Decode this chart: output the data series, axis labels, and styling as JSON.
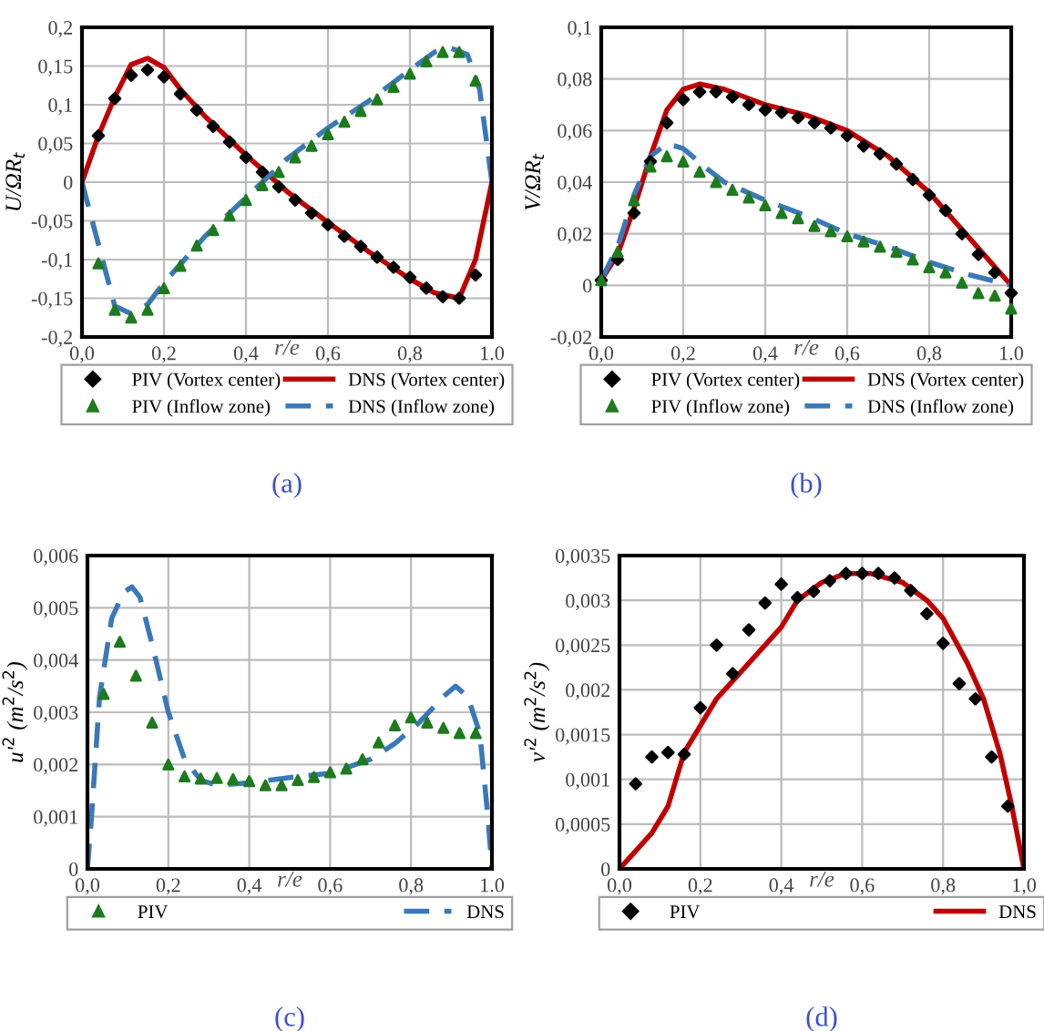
{
  "chart_data": [
    {
      "type": "line",
      "xlabel": "r/e",
      "ylabel": "U/ΩR$_{t}$",
      "annotations": [
        "(a)"
      ],
      "grid": true,
      "legend": "bottom",
      "xlim": [
        0,
        1
      ],
      "xticks": [
        {
          "value": 0,
          "label": "0,0"
        },
        {
          "value": 0.2,
          "label": "0,2"
        },
        {
          "value": 0.4,
          "label": "0,4"
        },
        {
          "value": 0.6,
          "label": "0,6"
        },
        {
          "value": 0.8,
          "label": "0,8"
        },
        {
          "value": 1,
          "label": "1.0"
        }
      ],
      "ylim": [
        -0.2,
        0.2
      ],
      "yticks": [
        {
          "value": -0.2,
          "label": "-0,2"
        },
        {
          "value": -0.15,
          "label": "-0,15"
        },
        {
          "value": -0.1,
          "label": "-0,1"
        },
        {
          "value": -0.05,
          "label": "-0,05"
        },
        0,
        {
          "value": 0.05,
          "label": "0,05"
        },
        {
          "value": 0.1,
          "label": "0,1"
        },
        {
          "value": 0.15,
          "label": "0,15"
        },
        {
          "value": 0.2,
          "label": "0,2"
        }
      ],
      "series": [
        {
          "name": "PIV (Vortex center)",
          "type": "scatter",
          "marker": "diamond",
          "color": "#000000",
          "x": [
            0.04,
            0.08,
            0.12,
            0.16,
            0.2,
            0.24,
            0.28,
            0.32,
            0.36,
            0.4,
            0.44,
            0.48,
            0.52,
            0.56,
            0.6,
            0.64,
            0.68,
            0.72,
            0.76,
            0.8,
            0.84,
            0.88,
            0.92,
            0.96
          ],
          "values": [
            0.06,
            0.108,
            0.138,
            0.145,
            0.136,
            0.114,
            0.093,
            0.072,
            0.052,
            0.032,
            0.013,
            -0.006,
            -0.023,
            -0.04,
            -0.055,
            -0.07,
            -0.083,
            -0.097,
            -0.11,
            -0.123,
            -0.137,
            -0.148,
            -0.15,
            -0.12
          ]
        },
        {
          "name": "DNS (Vortex center)",
          "type": "line",
          "line_style": "solid",
          "color": "#c00000",
          "x": [
            0,
            0.04,
            0.08,
            0.12,
            0.16,
            0.2,
            0.24,
            0.3,
            0.4,
            0.5,
            0.6,
            0.7,
            0.8,
            0.86,
            0.92,
            0.96,
            1.0
          ],
          "values": [
            0,
            0.06,
            0.11,
            0.152,
            0.16,
            0.148,
            0.12,
            0.085,
            0.035,
            -0.012,
            -0.052,
            -0.09,
            -0.125,
            -0.143,
            -0.15,
            -0.1,
            0
          ]
        },
        {
          "name": "PIV (Inflow zone)",
          "type": "scatter",
          "marker": "triangle",
          "color": "#1e7a1e",
          "x": [
            0.04,
            0.08,
            0.12,
            0.16,
            0.2,
            0.24,
            0.28,
            0.32,
            0.36,
            0.4,
            0.44,
            0.48,
            0.52,
            0.56,
            0.6,
            0.64,
            0.68,
            0.72,
            0.76,
            0.8,
            0.84,
            0.88,
            0.92,
            0.96
          ],
          "values": [
            -0.105,
            -0.165,
            -0.175,
            -0.165,
            -0.137,
            -0.108,
            -0.082,
            -0.062,
            -0.043,
            -0.023,
            -0.004,
            0.013,
            0.032,
            0.047,
            0.062,
            0.078,
            0.092,
            0.107,
            0.123,
            0.14,
            0.156,
            0.168,
            0.168,
            0.131
          ]
        },
        {
          "name": "DNS (Inflow zone)",
          "type": "line",
          "line_style": "dashed",
          "color": "#3a78b8",
          "x": [
            0,
            0.04,
            0.08,
            0.12,
            0.16,
            0.2,
            0.3,
            0.4,
            0.5,
            0.6,
            0.7,
            0.8,
            0.86,
            0.9,
            0.94,
            0.97,
            1.0
          ],
          "values": [
            0,
            -0.08,
            -0.16,
            -0.17,
            -0.158,
            -0.13,
            -0.07,
            -0.02,
            0.03,
            0.07,
            0.105,
            0.145,
            0.168,
            0.173,
            0.165,
            0.12,
            0
          ]
        }
      ]
    },
    {
      "type": "line",
      "xlabel": "r/e",
      "ylabel": "V/ΩR$_{t}$",
      "annotations": [
        "(b)"
      ],
      "grid": true,
      "legend": "bottom",
      "xlim": [
        0,
        1
      ],
      "xticks": [
        {
          "value": 0,
          "label": "0,0"
        },
        {
          "value": 0.2,
          "label": "0,2"
        },
        {
          "value": 0.4,
          "label": "0,4"
        },
        {
          "value": 0.6,
          "label": "0,6"
        },
        {
          "value": 0.8,
          "label": "0,8"
        },
        {
          "value": 1,
          "label": "1.0"
        }
      ],
      "ylim": [
        -0.02,
        0.1
      ],
      "yticks": [
        {
          "value": -0.02,
          "label": "-0,02"
        },
        0,
        {
          "value": 0.02,
          "label": "0,02"
        },
        {
          "value": 0.04,
          "label": "0,04"
        },
        {
          "value": 0.06,
          "label": "0,06"
        },
        {
          "value": 0.08,
          "label": "0,08"
        },
        {
          "value": 0.1,
          "label": "0,1"
        }
      ],
      "series": [
        {
          "name": "PIV (Vortex center)",
          "type": "scatter",
          "marker": "diamond",
          "color": "#000000",
          "x": [
            0,
            0.04,
            0.08,
            0.12,
            0.16,
            0.2,
            0.24,
            0.28,
            0.32,
            0.36,
            0.4,
            0.44,
            0.48,
            0.52,
            0.56,
            0.6,
            0.64,
            0.68,
            0.72,
            0.76,
            0.8,
            0.84,
            0.88,
            0.92,
            0.96,
            1.0
          ],
          "values": [
            0.002,
            0.01,
            0.028,
            0.048,
            0.063,
            0.072,
            0.075,
            0.075,
            0.073,
            0.07,
            0.068,
            0.067,
            0.065,
            0.063,
            0.061,
            0.058,
            0.054,
            0.051,
            0.047,
            0.041,
            0.035,
            0.029,
            0.02,
            0.012,
            0.005,
            -0.003
          ]
        },
        {
          "name": "DNS (Vortex center)",
          "type": "line",
          "line_style": "solid",
          "color": "#c00000",
          "x": [
            0,
            0.04,
            0.08,
            0.12,
            0.16,
            0.2,
            0.24,
            0.3,
            0.4,
            0.5,
            0.6,
            0.7,
            0.8,
            0.9,
            1.0
          ],
          "values": [
            0.002,
            0.012,
            0.03,
            0.05,
            0.068,
            0.076,
            0.078,
            0.076,
            0.07,
            0.066,
            0.06,
            0.05,
            0.036,
            0.018,
            0
          ]
        },
        {
          "name": "PIV (Inflow zone)",
          "type": "scatter",
          "marker": "triangle",
          "color": "#1e7a1e",
          "x": [
            0,
            0.04,
            0.08,
            0.12,
            0.16,
            0.2,
            0.24,
            0.28,
            0.32,
            0.36,
            0.4,
            0.44,
            0.48,
            0.52,
            0.56,
            0.6,
            0.64,
            0.68,
            0.72,
            0.76,
            0.8,
            0.84,
            0.88,
            0.92,
            0.96,
            1.0
          ],
          "values": [
            0.002,
            0.013,
            0.033,
            0.046,
            0.05,
            0.048,
            0.044,
            0.04,
            0.037,
            0.034,
            0.031,
            0.028,
            0.026,
            0.023,
            0.021,
            0.019,
            0.017,
            0.015,
            0.013,
            0.01,
            0.007,
            0.005,
            0.001,
            -0.003,
            -0.004,
            -0.009
          ]
        },
        {
          "name": "DNS (Inflow zone)",
          "type": "line",
          "line_style": "dashed",
          "color": "#3a78b8",
          "x": [
            0,
            0.04,
            0.08,
            0.12,
            0.16,
            0.2,
            0.26,
            0.3,
            0.4,
            0.5,
            0.6,
            0.7,
            0.8,
            0.9,
            1.0
          ],
          "values": [
            0.002,
            0.015,
            0.035,
            0.05,
            0.055,
            0.053,
            0.045,
            0.04,
            0.033,
            0.027,
            0.02,
            0.015,
            0.009,
            0.004,
            0
          ]
        }
      ]
    },
    {
      "type": "line",
      "xlabel": "r/e",
      "ylabel": "u'$^{2}$ (m$^{2}$/s$^{2}$)",
      "annotations": [
        "(c)"
      ],
      "grid": true,
      "legend": "bottom",
      "xlim": [
        0,
        1
      ],
      "xticks": [
        {
          "value": 0,
          "label": "0,0"
        },
        {
          "value": 0.2,
          "label": "0,2"
        },
        {
          "value": 0.4,
          "label": "0,4"
        },
        {
          "value": 0.6,
          "label": "0,6"
        },
        {
          "value": 0.8,
          "label": "0,8"
        },
        {
          "value": 1,
          "label": "1.0"
        }
      ],
      "ylim": [
        0,
        0.006
      ],
      "yticks": [
        0,
        {
          "value": 0.001,
          "label": "0,001"
        },
        {
          "value": 0.002,
          "label": "0,002"
        },
        {
          "value": 0.003,
          "label": "0,003"
        },
        {
          "value": 0.004,
          "label": "0,004"
        },
        {
          "value": 0.005,
          "label": "0,005"
        },
        {
          "value": 0.006,
          "label": "0,006"
        }
      ],
      "series": [
        {
          "name": "PIV",
          "type": "scatter",
          "marker": "triangle",
          "color": "#1e7a1e",
          "x": [
            0.04,
            0.08,
            0.12,
            0.16,
            0.2,
            0.24,
            0.28,
            0.32,
            0.36,
            0.4,
            0.44,
            0.48,
            0.52,
            0.56,
            0.6,
            0.64,
            0.68,
            0.72,
            0.76,
            0.8,
            0.84,
            0.88,
            0.92,
            0.96
          ],
          "values": [
            0.00335,
            0.00435,
            0.0037,
            0.0028,
            0.002,
            0.00177,
            0.00173,
            0.00174,
            0.00172,
            0.00168,
            0.0016,
            0.0016,
            0.0017,
            0.00176,
            0.00185,
            0.00192,
            0.0021,
            0.00242,
            0.00275,
            0.0029,
            0.0028,
            0.0027,
            0.0026,
            0.0026
          ]
        },
        {
          "name": "DNS",
          "type": "line",
          "line_style": "dashed",
          "color": "#3a78b8",
          "x": [
            0,
            0.01,
            0.03,
            0.06,
            0.09,
            0.11,
            0.13,
            0.16,
            0.2,
            0.24,
            0.28,
            0.32,
            0.4,
            0.5,
            0.6,
            0.7,
            0.76,
            0.82,
            0.88,
            0.91,
            0.94,
            0.97,
            0.99,
            1.0
          ],
          "values": [
            0,
            0.001,
            0.0033,
            0.0048,
            0.0053,
            0.0054,
            0.0052,
            0.0043,
            0.003,
            0.0021,
            0.0017,
            0.0016,
            0.00165,
            0.00175,
            0.00183,
            0.0021,
            0.0024,
            0.0028,
            0.0033,
            0.0035,
            0.0033,
            0.0026,
            0.001,
            0
          ]
        }
      ]
    },
    {
      "type": "line",
      "xlabel": "r/e",
      "ylabel": "v'$^{2}$ (m$^{2}$/s$^{2}$)",
      "annotations": [
        "(d)"
      ],
      "grid": true,
      "legend": "bottom",
      "xlim": [
        0,
        1
      ],
      "xticks": [
        {
          "value": 0,
          "label": "0,0"
        },
        {
          "value": 0.2,
          "label": "0,2"
        },
        {
          "value": 0.4,
          "label": "0,4"
        },
        {
          "value": 0.6,
          "label": "0,6"
        },
        {
          "value": 0.8,
          "label": "0,8"
        },
        {
          "value": 1,
          "label": "1,0"
        }
      ],
      "ylim": [
        0,
        0.0035
      ],
      "yticks": [
        0,
        {
          "value": 0.0005,
          "label": "0,0005"
        },
        {
          "value": 0.001,
          "label": "0,001"
        },
        {
          "value": 0.0015,
          "label": "0,0015"
        },
        {
          "value": 0.002,
          "label": "0,002"
        },
        {
          "value": 0.0025,
          "label": "0,0025"
        },
        {
          "value": 0.003,
          "label": "0,003"
        },
        {
          "value": 0.0035,
          "label": "0,0035"
        }
      ],
      "series": [
        {
          "name": "PIV",
          "type": "scatter",
          "marker": "diamond",
          "color": "#000000",
          "x": [
            0.04,
            0.08,
            0.12,
            0.16,
            0.2,
            0.24,
            0.28,
            0.32,
            0.36,
            0.4,
            0.44,
            0.48,
            0.52,
            0.56,
            0.6,
            0.64,
            0.68,
            0.72,
            0.76,
            0.8,
            0.84,
            0.88,
            0.92,
            0.96
          ],
          "values": [
            0.00095,
            0.00125,
            0.0013,
            0.00128,
            0.0018,
            0.0025,
            0.00218,
            0.00267,
            0.00297,
            0.00318,
            0.00303,
            0.0031,
            0.00322,
            0.0033,
            0.0033,
            0.0033,
            0.00325,
            0.00311,
            0.00285,
            0.00252,
            0.00207,
            0.0019,
            0.00125,
            0.0007
          ]
        },
        {
          "name": "DNS",
          "type": "line",
          "line_style": "solid",
          "color": "#c00000",
          "x": [
            0,
            0.04,
            0.08,
            0.12,
            0.16,
            0.2,
            0.24,
            0.3,
            0.4,
            0.44,
            0.5,
            0.56,
            0.62,
            0.7,
            0.76,
            0.8,
            0.86,
            0.9,
            0.94,
            0.97,
            1.0
          ],
          "values": [
            0,
            0.0002,
            0.0004,
            0.0007,
            0.0013,
            0.0016,
            0.0019,
            0.0022,
            0.0027,
            0.003,
            0.0032,
            0.0033,
            0.0033,
            0.0032,
            0.003,
            0.0028,
            0.0023,
            0.0019,
            0.0013,
            0.0007,
            0
          ]
        }
      ]
    }
  ]
}
